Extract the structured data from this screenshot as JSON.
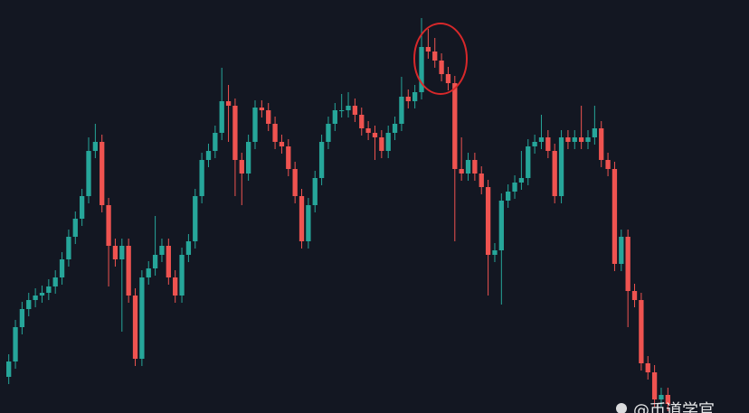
{
  "chart_data": {
    "type": "candlestick",
    "categories": [
      null,
      null,
      null,
      null,
      null,
      null,
      null,
      null,
      null,
      null,
      null,
      null,
      null,
      null,
      null,
      null,
      null,
      null,
      null,
      null,
      null,
      null,
      null,
      null,
      null,
      null,
      null,
      null,
      null,
      null,
      null,
      null,
      null,
      null,
      null,
      null,
      null,
      null,
      null,
      null,
      null,
      null,
      null,
      null,
      null,
      null,
      null,
      null,
      null,
      null,
      null,
      null,
      null,
      null,
      null,
      null,
      null,
      null,
      null,
      null,
      null,
      null,
      null,
      null,
      null,
      null,
      null,
      null,
      null,
      null,
      null,
      null,
      null,
      null,
      null,
      null,
      null,
      null,
      null,
      null,
      null,
      null,
      null,
      null,
      null,
      null,
      null,
      null,
      null,
      null,
      null,
      null,
      null,
      null,
      null,
      null,
      null,
      null,
      null,
      null
    ],
    "open": [
      40,
      57,
      95,
      115,
      125,
      130,
      133,
      140,
      150,
      170,
      195,
      215,
      240,
      290,
      300,
      230,
      185,
      170,
      185,
      130,
      60,
      150,
      160,
      175,
      185,
      150,
      130,
      175,
      190,
      240,
      280,
      290,
      310,
      345,
      340,
      280,
      265,
      300,
      338,
      335,
      320,
      300,
      295,
      270,
      240,
      190,
      230,
      260,
      300,
      320,
      335,
      335,
      340,
      330,
      315,
      310,
      305,
      290,
      310,
      320,
      350,
      345,
      355,
      405,
      400,
      390,
      375,
      365,
      270,
      265,
      280,
      265,
      250,
      175,
      180,
      235,
      245,
      255,
      260,
      295,
      300,
      305,
      290,
      240,
      305,
      300,
      305,
      300,
      305,
      315,
      280,
      270,
      165,
      195,
      135,
      125,
      55,
      45,
      15,
      20
    ],
    "high": [
      65,
      103,
      123,
      133,
      138,
      141,
      148,
      158,
      178,
      203,
      223,
      248,
      305,
      320,
      308,
      238,
      193,
      193,
      193,
      138,
      158,
      168,
      218,
      193,
      193,
      158,
      183,
      198,
      248,
      288,
      298,
      318,
      382,
      363,
      348,
      288,
      308,
      346,
      346,
      343,
      328,
      308,
      303,
      278,
      248,
      238,
      268,
      308,
      328,
      343,
      353,
      355,
      348,
      338,
      323,
      318,
      313,
      318,
      328,
      372,
      358,
      363,
      437,
      425,
      415,
      398,
      383,
      373,
      305,
      288,
      288,
      273,
      258,
      188,
      243,
      253,
      263,
      290,
      303,
      308,
      330,
      313,
      298,
      313,
      313,
      313,
      340,
      313,
      340,
      323,
      288,
      278,
      203,
      203,
      143,
      133,
      63,
      53,
      28,
      28
    ],
    "low": [
      32,
      49,
      87,
      107,
      117,
      122,
      125,
      132,
      142,
      162,
      187,
      207,
      232,
      282,
      222,
      140,
      162,
      90,
      122,
      52,
      52,
      142,
      152,
      167,
      142,
      122,
      122,
      167,
      182,
      232,
      272,
      282,
      302,
      300,
      240,
      230,
      257,
      292,
      327,
      312,
      292,
      287,
      262,
      232,
      182,
      182,
      222,
      252,
      292,
      312,
      327,
      327,
      322,
      307,
      302,
      280,
      282,
      282,
      302,
      312,
      337,
      337,
      347,
      392,
      382,
      367,
      357,
      190,
      257,
      257,
      257,
      242,
      130,
      167,
      120,
      227,
      237,
      247,
      252,
      287,
      292,
      282,
      232,
      232,
      292,
      292,
      292,
      292,
      297,
      272,
      262,
      157,
      157,
      95,
      117,
      47,
      37,
      7,
      7,
      2
    ],
    "close": [
      57,
      95,
      115,
      125,
      130,
      133,
      140,
      150,
      170,
      195,
      215,
      240,
      290,
      300,
      230,
      185,
      170,
      185,
      130,
      60,
      150,
      160,
      175,
      185,
      150,
      130,
      175,
      190,
      240,
      280,
      290,
      310,
      345,
      340,
      280,
      265,
      300,
      338,
      335,
      320,
      300,
      295,
      270,
      240,
      190,
      230,
      260,
      300,
      320,
      335,
      335,
      340,
      330,
      315,
      310,
      305,
      290,
      310,
      320,
      350,
      345,
      355,
      405,
      400,
      390,
      375,
      365,
      270,
      265,
      280,
      265,
      250,
      175,
      180,
      235,
      245,
      255,
      260,
      295,
      300,
      305,
      290,
      240,
      305,
      300,
      305,
      300,
      305,
      315,
      280,
      270,
      165,
      195,
      135,
      125,
      55,
      45,
      15,
      20,
      10
    ],
    "up_color": "#26a69a",
    "down_color": "#ef5350",
    "ylim": [
      0,
      457
    ],
    "watermark": "@币道学官"
  }
}
